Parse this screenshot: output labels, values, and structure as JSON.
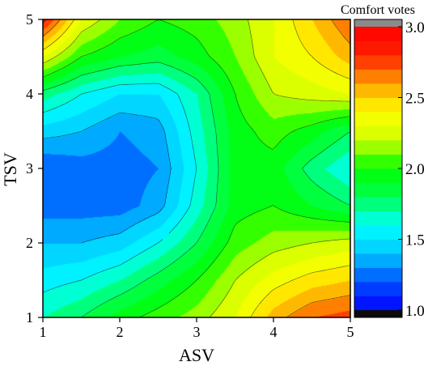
{
  "chart_data": {
    "type": "heatmap",
    "subtype": "filled-contour",
    "xlabel": "ASV",
    "ylabel": "TSV",
    "xlim": [
      1,
      5
    ],
    "ylim": [
      1,
      5
    ],
    "x_ticks": [
      1,
      2,
      3,
      4,
      5
    ],
    "y_ticks": [
      1,
      2,
      3,
      4,
      5
    ],
    "colorbar": {
      "title": "Comfort votes",
      "range": [
        1.0,
        3.0
      ],
      "ticks": [
        "1.0",
        "1.5",
        "2.0",
        "2.5",
        "3.0"
      ],
      "under_color": "#0b0b0b",
      "over_color": "#8a8a8a",
      "colormap": [
        "#0000ff",
        "#0050ff",
        "#00c8ff",
        "#00ffff",
        "#00ff50",
        "#00ff00",
        "#d0ff00",
        "#ffff00",
        "#ffa000",
        "#ff2000",
        "#ff0000"
      ]
    },
    "contour_lines": "black",
    "grid": false,
    "x": [
      1.0,
      1.5,
      2.0,
      2.5,
      3.0,
      3.5,
      4.0,
      4.5,
      5.0
    ],
    "y": [
      1.0,
      1.5,
      2.0,
      2.5,
      3.0,
      3.5,
      4.0,
      4.5,
      5.0
    ],
    "z": [
      [
        1.7,
        1.8,
        1.95,
        2.05,
        2.15,
        2.3,
        2.55,
        2.7,
        2.75
      ],
      [
        1.55,
        1.6,
        1.7,
        1.85,
        2.0,
        2.2,
        2.35,
        2.45,
        2.5
      ],
      [
        1.4,
        1.4,
        1.45,
        1.6,
        1.8,
        2.05,
        2.15,
        2.2,
        2.25
      ],
      [
        1.25,
        1.25,
        1.25,
        1.35,
        1.65,
        1.95,
        2.0,
        1.9,
        1.8
      ],
      [
        1.2,
        1.25,
        1.25,
        1.3,
        1.6,
        1.95,
        1.95,
        1.75,
        1.6
      ],
      [
        1.45,
        1.4,
        1.3,
        1.35,
        1.65,
        1.95,
        2.05,
        1.95,
        1.8
      ],
      [
        1.75,
        1.6,
        1.5,
        1.5,
        1.7,
        2.0,
        2.2,
        2.25,
        2.3
      ],
      [
        2.3,
        2.0,
        1.9,
        1.85,
        1.95,
        2.1,
        2.3,
        2.4,
        2.55
      ],
      [
        2.85,
        2.3,
        2.1,
        2.0,
        2.05,
        2.15,
        2.3,
        2.5,
        2.7
      ]
    ]
  }
}
